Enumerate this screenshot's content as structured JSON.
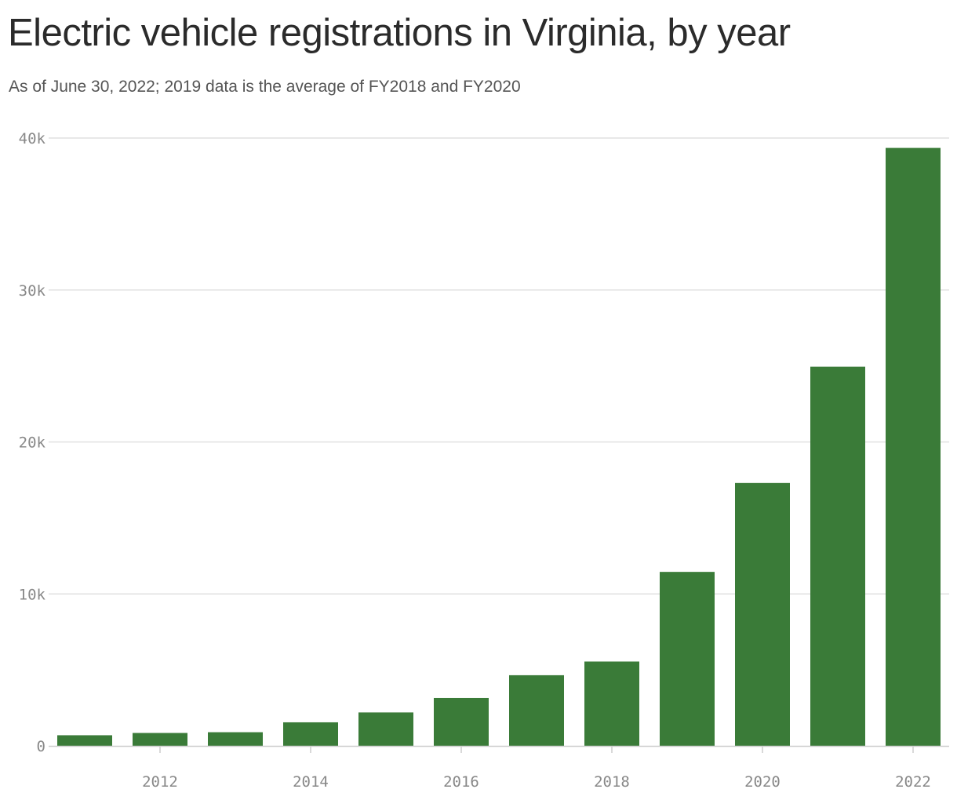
{
  "chart_data": {
    "type": "bar",
    "title": "Electric vehicle registrations in Virginia, by year",
    "subtitle": "As of June 30, 2022; 2019 data is the average of FY2018 and FY2020",
    "xlabel": "",
    "ylabel": "",
    "categories": [
      "2011",
      "2012",
      "2013",
      "2014",
      "2015",
      "2016",
      "2017",
      "2018",
      "2019",
      "2020",
      "2021",
      "2022"
    ],
    "x_tick_labels": [
      "2012",
      "2014",
      "2016",
      "2018",
      "2020",
      "2022"
    ],
    "y_ticks": [
      0,
      10000,
      20000,
      30000,
      40000
    ],
    "y_tick_labels": [
      "0",
      "10k",
      "20k",
      "30k",
      "40k"
    ],
    "values": [
      700,
      850,
      900,
      1550,
      2200,
      3150,
      4650,
      5550,
      11450,
      17300,
      24950,
      39350
    ],
    "ylim": [
      0,
      40000
    ],
    "grid": true,
    "bar_color": "#3a7b38",
    "grid_color": "#e0e0e0",
    "axis_color": "#cccccc",
    "tick_color": "#888888"
  }
}
